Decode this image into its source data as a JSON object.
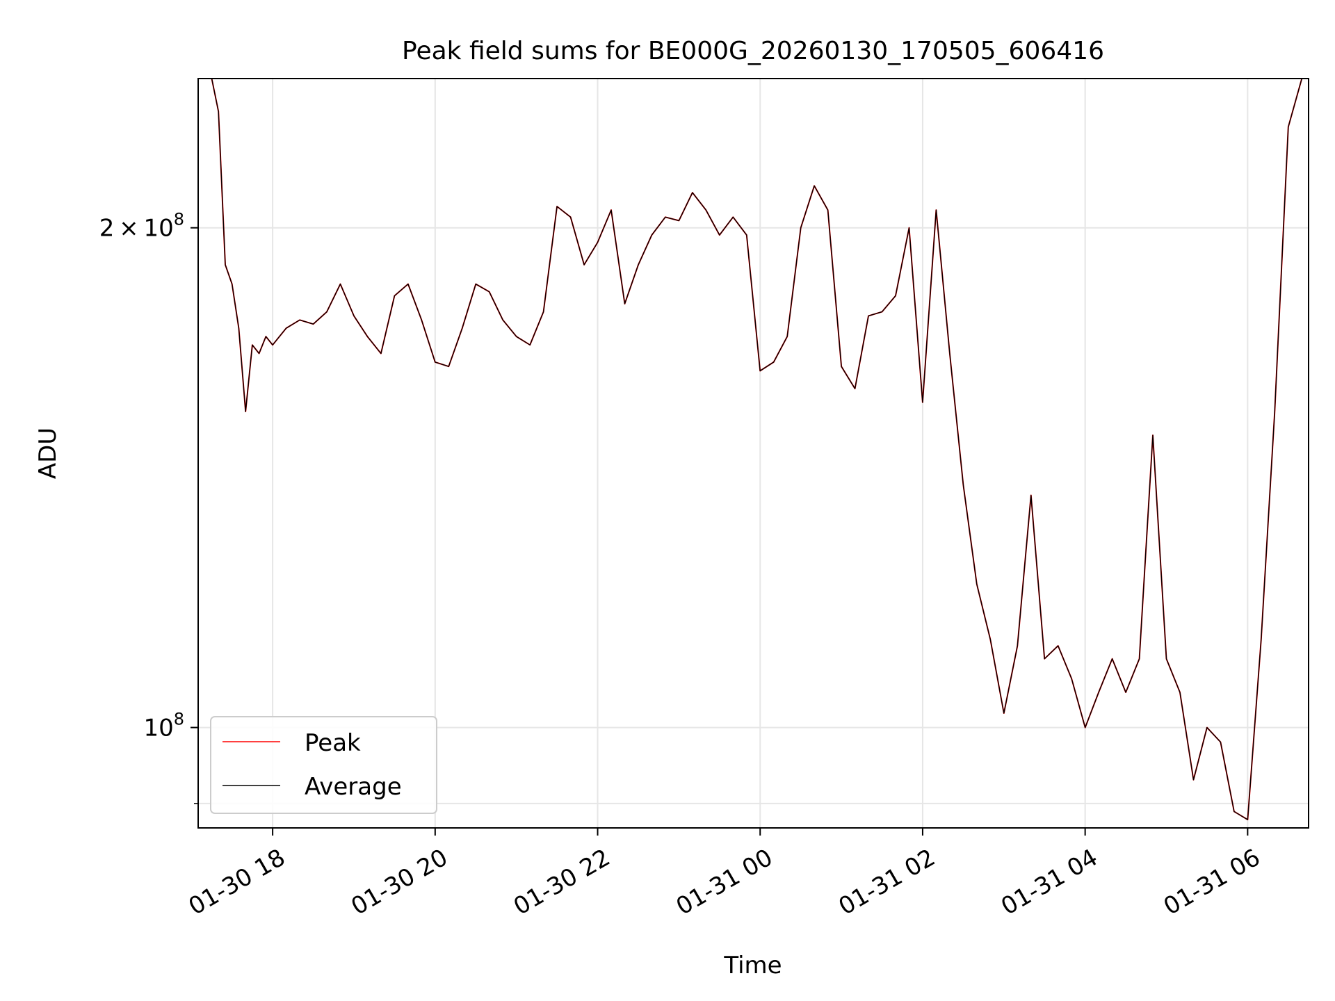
{
  "chart_data": {
    "type": "line",
    "title": "Peak field sums for BE000G_20260130_170505_606416",
    "xlabel": "Time",
    "ylabel": "ADU",
    "yscale": "log",
    "grid": true,
    "legend_position": "lower-left",
    "xlim": [
      "01-30 17:05",
      "01-31 06:45"
    ],
    "ylim": [
      87000000,
      246000000
    ],
    "x_ticks": [
      "01-30 18",
      "01-30 20",
      "01-30 22",
      "01-31 00",
      "01-31 02",
      "01-31 04",
      "01-31 06"
    ],
    "y_ticks": [
      {
        "value": 100000000,
        "mantissa": "",
        "exponent": "8"
      },
      {
        "value": 200000000,
        "mantissa": "2",
        "exponent": "8"
      }
    ],
    "y_minor_ticks": [
      90000000
    ],
    "x": [
      "01-30 17:05",
      "01-30 17:15",
      "01-30 17:20",
      "01-30 17:25",
      "01-30 17:30",
      "01-30 17:35",
      "01-30 17:40",
      "01-30 17:45",
      "01-30 17:50",
      "01-30 17:55",
      "01-30 18:00",
      "01-30 18:10",
      "01-30 18:20",
      "01-30 18:30",
      "01-30 18:40",
      "01-30 18:50",
      "01-30 19:00",
      "01-30 19:10",
      "01-30 19:20",
      "01-30 19:30",
      "01-30 19:40",
      "01-30 19:50",
      "01-30 20:00",
      "01-30 20:10",
      "01-30 20:20",
      "01-30 20:30",
      "01-30 20:40",
      "01-30 20:50",
      "01-30 21:00",
      "01-30 21:10",
      "01-30 21:20",
      "01-30 21:30",
      "01-30 21:40",
      "01-30 21:50",
      "01-30 22:00",
      "01-30 22:10",
      "01-30 22:20",
      "01-30 22:30",
      "01-30 22:40",
      "01-30 22:50",
      "01-30 23:00",
      "01-30 23:10",
      "01-30 23:20",
      "01-30 23:30",
      "01-30 23:40",
      "01-30 23:50",
      "01-31 00:00",
      "01-31 00:10",
      "01-31 00:20",
      "01-31 00:30",
      "01-31 00:40",
      "01-31 00:50",
      "01-31 01:00",
      "01-31 01:10",
      "01-31 01:20",
      "01-31 01:30",
      "01-31 01:40",
      "01-31 01:50",
      "01-31 02:00",
      "01-31 02:10",
      "01-31 02:20",
      "01-31 02:30",
      "01-31 02:40",
      "01-31 02:50",
      "01-31 03:00",
      "01-31 03:10",
      "01-31 03:20",
      "01-31 03:30",
      "01-31 03:40",
      "01-31 03:50",
      "01-31 04:00",
      "01-31 04:10",
      "01-31 04:20",
      "01-31 04:30",
      "01-31 04:40",
      "01-31 04:50",
      "01-31 05:00",
      "01-31 05:10",
      "01-31 05:20",
      "01-31 05:30",
      "01-31 05:40",
      "01-31 05:50",
      "01-31 06:00",
      "01-31 06:10",
      "01-31 06:20",
      "01-31 06:30",
      "01-31 06:40"
    ],
    "series": [
      {
        "name": "Peak",
        "color": "#ff0000",
        "values": [
          246000000,
          246000000,
          235000000,
          190000000,
          185000000,
          174000000,
          155000000,
          170000000,
          168000000,
          172000000,
          170000000,
          174000000,
          176000000,
          175000000,
          178000000,
          185000000,
          177000000,
          172000000,
          168000000,
          182000000,
          185000000,
          176000000,
          166000000,
          165000000,
          174000000,
          185000000,
          183000000,
          176000000,
          172000000,
          170000000,
          178000000,
          206000000,
          203000000,
          190000000,
          196000000,
          205000000,
          180000000,
          190000000,
          198000000,
          203000000,
          202000000,
          210000000,
          205000000,
          198000000,
          203000000,
          198000000,
          164000000,
          166000000,
          172000000,
          200000000,
          212000000,
          205000000,
          165000000,
          160000000,
          177000000,
          178000000,
          182000000,
          200000000,
          157000000,
          205000000,
          168000000,
          140000000,
          122000000,
          113000000,
          102000000,
          112000000,
          138000000,
          110000000,
          112000000,
          107000000,
          100000000,
          105000000,
          110000000,
          105000000,
          110000000,
          150000000,
          110000000,
          105000000,
          93000000,
          100000000,
          98000000,
          89000000,
          88000000,
          113000000,
          155000000,
          230000000,
          246000000
        ]
      },
      {
        "name": "Average",
        "color": "#000000",
        "values": [
          246000000,
          246000000,
          235000000,
          190000000,
          185000000,
          174000000,
          155000000,
          170000000,
          168000000,
          172000000,
          170000000,
          174000000,
          176000000,
          175000000,
          178000000,
          185000000,
          177000000,
          172000000,
          168000000,
          182000000,
          185000000,
          176000000,
          166000000,
          165000000,
          174000000,
          185000000,
          183000000,
          176000000,
          172000000,
          170000000,
          178000000,
          206000000,
          203000000,
          190000000,
          196000000,
          205000000,
          180000000,
          190000000,
          198000000,
          203000000,
          202000000,
          210000000,
          205000000,
          198000000,
          203000000,
          198000000,
          164000000,
          166000000,
          172000000,
          200000000,
          212000000,
          205000000,
          165000000,
          160000000,
          177000000,
          178000000,
          182000000,
          200000000,
          157000000,
          205000000,
          168000000,
          140000000,
          122000000,
          113000000,
          102000000,
          112000000,
          138000000,
          110000000,
          112000000,
          107000000,
          100000000,
          105000000,
          110000000,
          105000000,
          110000000,
          150000000,
          110000000,
          105000000,
          93000000,
          100000000,
          98000000,
          89000000,
          88000000,
          113000000,
          155000000,
          230000000,
          246000000
        ]
      }
    ]
  }
}
